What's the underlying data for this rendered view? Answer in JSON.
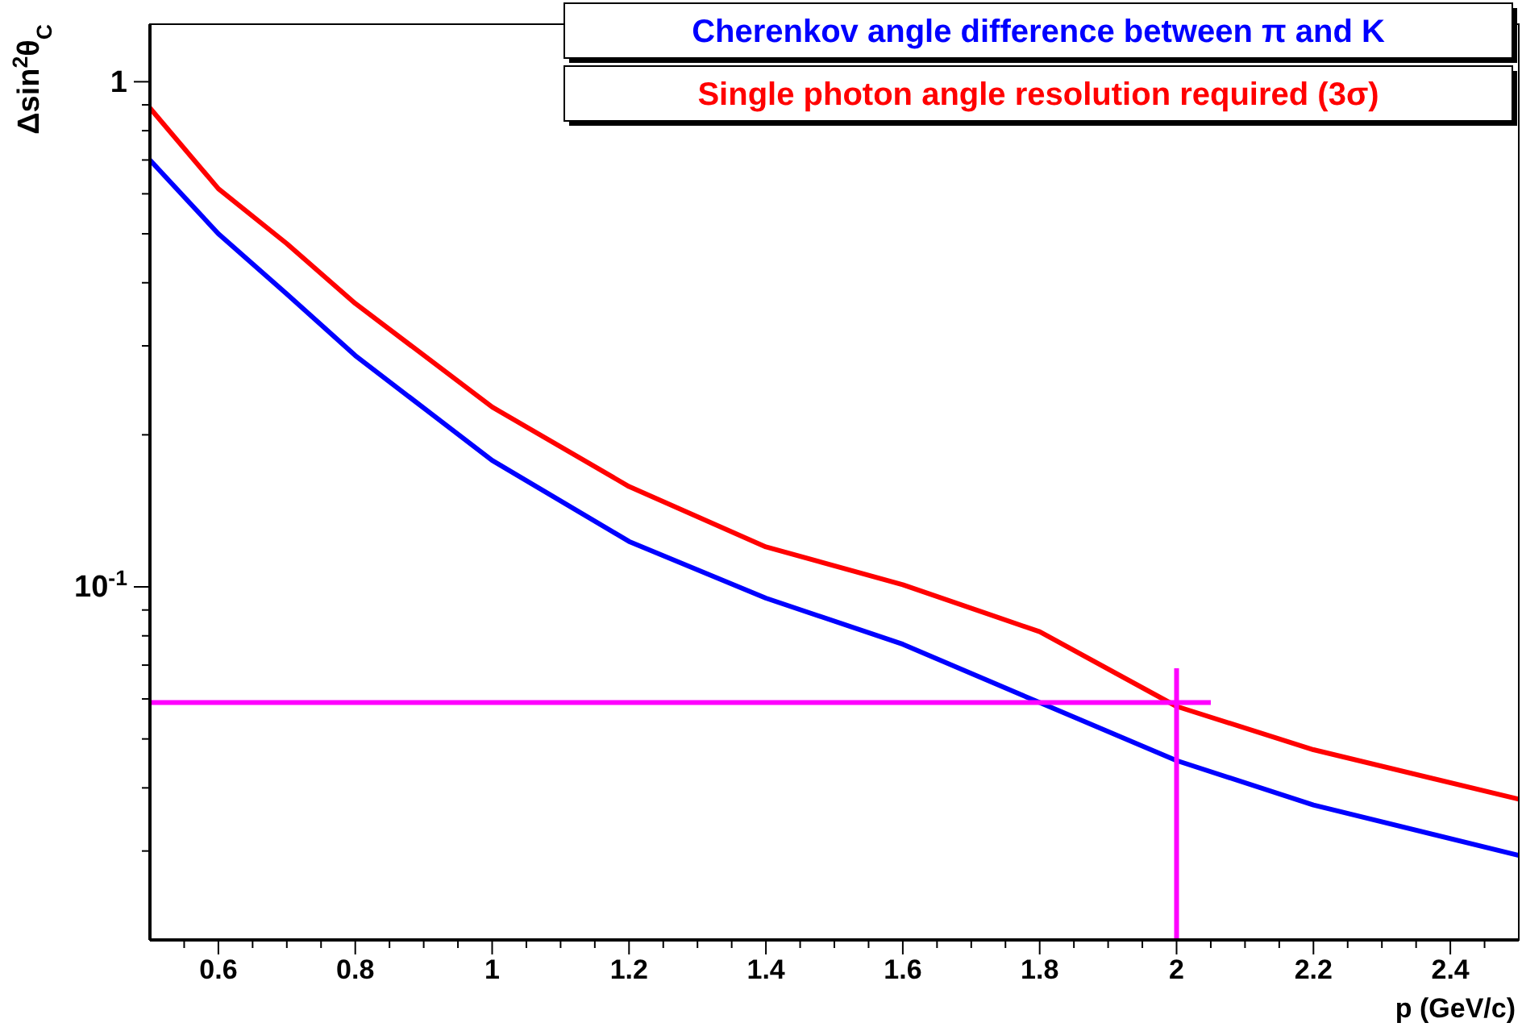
{
  "chart_data": {
    "type": "line",
    "xlabel": "p (GeV/c)",
    "ylabel": "Δsin$^{2}$θ$_{C}$",
    "log": "y",
    "legend": "top right",
    "grid": false,
    "xlim": [
      0.5,
      2.5
    ],
    "xticks": [
      {
        "value": 0.55,
        "label": null
      },
      0.6,
      {
        "value": 0.65,
        "label": null
      },
      {
        "value": 0.7,
        "label": null
      },
      {
        "value": 0.75,
        "label": null
      },
      0.8,
      {
        "value": 0.85,
        "label": null
      },
      {
        "value": 0.9,
        "label": null
      },
      {
        "value": 0.95,
        "label": null
      },
      1,
      {
        "value": 1.05,
        "label": null
      },
      {
        "value": 1.1,
        "label": null
      },
      {
        "value": 1.15,
        "label": null
      },
      1.2,
      {
        "value": 1.25,
        "label": null
      },
      {
        "value": 1.3,
        "label": null
      },
      {
        "value": 1.35,
        "label": null
      },
      1.4,
      {
        "value": 1.45,
        "label": null
      },
      {
        "value": 1.5,
        "label": null
      },
      {
        "value": 1.55,
        "label": null
      },
      1.6,
      {
        "value": 1.65,
        "label": null
      },
      {
        "value": 1.7,
        "label": null
      },
      {
        "value": 1.75,
        "label": null
      },
      1.8,
      {
        "value": 1.85,
        "label": null
      },
      {
        "value": 1.9,
        "label": null
      },
      {
        "value": 1.95,
        "label": null
      },
      2,
      {
        "value": 2.05,
        "label": null
      },
      {
        "value": 2.1,
        "label": null
      },
      {
        "value": 2.15,
        "label": null
      },
      2.2,
      {
        "value": 2.25,
        "label": null
      },
      {
        "value": 2.3,
        "label": null
      },
      {
        "value": 2.35,
        "label": null
      },
      2.4,
      {
        "value": 2.45,
        "label": null
      }
    ],
    "ylim": [
      0.02,
      1.3
    ],
    "yticks": [
      {
        "value": 0.03,
        "label": null
      },
      {
        "value": 0.04,
        "label": null
      },
      {
        "value": 0.05,
        "label": null
      },
      {
        "value": 0.06,
        "label": null
      },
      {
        "value": 0.07,
        "label": null
      },
      {
        "value": 0.08,
        "label": null
      },
      {
        "value": 0.09,
        "label": null
      },
      {
        "value": 0.1,
        "label": "10$^{-1}$"
      },
      {
        "value": 0.2,
        "label": null
      },
      {
        "value": 0.3,
        "label": null
      },
      {
        "value": 0.4,
        "label": null
      },
      {
        "value": 0.5,
        "label": null
      },
      {
        "value": 0.6,
        "label": null
      },
      {
        "value": 0.7,
        "label": null
      },
      {
        "value": 0.8,
        "label": null
      },
      {
        "value": 0.9,
        "label": null
      },
      1
    ],
    "x": [
      0.5,
      0.6,
      0.7,
      0.8,
      1.0,
      1.2,
      1.4,
      1.6,
      1.8,
      2.0,
      2.2,
      2.5
    ],
    "series": [
      {
        "name": "Cherenkov angle difference between π and K",
        "color": "#0000ff",
        "values": [
          0.7,
          0.5,
          0.38,
          0.287,
          0.178,
          0.123,
          0.095,
          0.077,
          0.059,
          0.0453,
          0.037,
          0.0294
        ]
      },
      {
        "name": "Single photon angle resolution required (3σ)",
        "color": "#ff0000",
        "values": [
          0.887,
          0.614,
          0.478,
          0.364,
          0.227,
          0.158,
          0.12,
          0.101,
          0.0815,
          0.058,
          0.0476,
          0.038
        ]
      },
      {
        "color": "#ff00ff",
        "x": [
          0.5,
          2.05
        ],
        "values": [
          0.059,
          0.059
        ]
      },
      {
        "color": "#ff00ff",
        "x": [
          2,
          2
        ],
        "values": [
          0.02,
          0.069
        ]
      }
    ]
  }
}
